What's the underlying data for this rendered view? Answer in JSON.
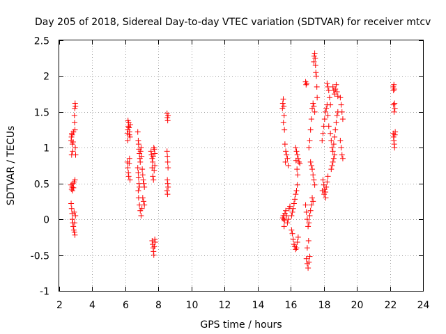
{
  "chart_data": {
    "type": "scatter",
    "title": "Day 205 of 2018, Sidereal Day-to-day VTEC variation (SDTVAR) for receiver mtcv",
    "xlabel": "GPS time / hours",
    "ylabel": "SDTVAR / TECUs",
    "xlim": [
      2,
      24
    ],
    "ylim": [
      -1,
      2.5
    ],
    "xticks": [
      2,
      4,
      6,
      8,
      10,
      12,
      14,
      16,
      18,
      20,
      22,
      24
    ],
    "yticks": [
      -1,
      -0.5,
      0,
      0.5,
      1,
      1.5,
      2,
      2.5
    ],
    "xtick_labels": [
      "2",
      "4",
      "6",
      "8",
      "10",
      "12",
      "14",
      "16",
      "18",
      "20",
      "22",
      "24"
    ],
    "ytick_labels": [
      "-1",
      "-0.5",
      "0",
      "0.5",
      "1",
      "1.5",
      "2",
      "2.5"
    ],
    "grid": true,
    "marker": "+",
    "series": [
      {
        "name": "SDTVAR",
        "color": "#ff0000",
        "points": [
          [
            2.72,
            1.1
          ],
          [
            2.74,
            1.15
          ],
          [
            2.76,
            1.2
          ],
          [
            2.78,
            1.18
          ],
          [
            2.8,
            1.05
          ],
          [
            2.82,
            0.95
          ],
          [
            2.75,
            0.9
          ],
          [
            2.86,
            1.22
          ],
          [
            2.84,
            1.08
          ],
          [
            2.92,
            1.45
          ],
          [
            2.94,
            1.55
          ],
          [
            2.96,
            1.62
          ],
          [
            2.98,
            1.58
          ],
          [
            2.93,
            1.35
          ],
          [
            2.95,
            1.25
          ],
          [
            2.97,
            1.0
          ],
          [
            2.99,
            0.9
          ],
          [
            2.72,
            0.48
          ],
          [
            2.75,
            0.42
          ],
          [
            2.78,
            0.45
          ],
          [
            2.8,
            0.4
          ],
          [
            2.83,
            0.5
          ],
          [
            2.86,
            0.44
          ],
          [
            2.9,
            0.52
          ],
          [
            2.95,
            0.55
          ],
          [
            2.72,
            0.22
          ],
          [
            2.75,
            0.15
          ],
          [
            2.78,
            0.08
          ],
          [
            2.8,
            0.0
          ],
          [
            2.82,
            -0.05
          ],
          [
            2.85,
            -0.1
          ],
          [
            2.88,
            -0.15
          ],
          [
            2.92,
            -0.18
          ],
          [
            2.95,
            -0.22
          ],
          [
            2.98,
            0.05
          ],
          [
            2.9,
            0.1
          ],
          [
            2.93,
            -0.05
          ],
          [
            6.12,
            1.2
          ],
          [
            6.15,
            1.25
          ],
          [
            6.18,
            1.3
          ],
          [
            6.2,
            1.35
          ],
          [
            6.22,
            1.28
          ],
          [
            6.25,
            1.22
          ],
          [
            6.28,
            1.15
          ],
          [
            6.14,
            1.1
          ],
          [
            6.3,
            1.32
          ],
          [
            6.16,
            1.38
          ],
          [
            6.24,
            1.18
          ],
          [
            6.12,
            0.8
          ],
          [
            6.15,
            0.72
          ],
          [
            6.18,
            0.65
          ],
          [
            6.2,
            0.6
          ],
          [
            6.23,
            0.78
          ],
          [
            6.25,
            0.85
          ],
          [
            6.28,
            0.55
          ],
          [
            6.75,
            1.22
          ],
          [
            6.78,
            1.1
          ],
          [
            6.8,
            1.05
          ],
          [
            6.82,
            0.98
          ],
          [
            6.85,
            0.92
          ],
          [
            6.88,
            0.85
          ],
          [
            6.9,
            0.8
          ],
          [
            6.92,
            0.95
          ],
          [
            6.95,
            1.0
          ],
          [
            6.98,
            0.88
          ],
          [
            6.75,
            0.72
          ],
          [
            6.78,
            0.65
          ],
          [
            6.8,
            0.58
          ],
          [
            6.82,
            0.5
          ],
          [
            6.85,
            0.45
          ],
          [
            6.78,
            0.4
          ],
          [
            6.8,
            0.3
          ],
          [
            6.85,
            0.2
          ],
          [
            6.9,
            0.12
          ],
          [
            6.95,
            0.05
          ],
          [
            7.0,
            0.15
          ],
          [
            7.02,
            0.7
          ],
          [
            7.05,
            0.62
          ],
          [
            7.08,
            0.55
          ],
          [
            7.12,
            0.5
          ],
          [
            7.15,
            0.45
          ],
          [
            7.05,
            0.3
          ],
          [
            7.1,
            0.25
          ],
          [
            7.15,
            0.2
          ],
          [
            7.55,
            0.95
          ],
          [
            7.58,
            0.9
          ],
          [
            7.62,
            0.85
          ],
          [
            7.65,
            0.8
          ],
          [
            7.68,
            0.88
          ],
          [
            7.72,
            1.0
          ],
          [
            7.75,
            0.98
          ],
          [
            7.78,
            0.92
          ],
          [
            7.62,
            0.72
          ],
          [
            7.66,
            0.6
          ],
          [
            7.7,
            0.55
          ],
          [
            7.74,
            0.68
          ],
          [
            7.78,
            0.75
          ],
          [
            7.62,
            -0.3
          ],
          [
            7.65,
            -0.35
          ],
          [
            7.68,
            -0.4
          ],
          [
            7.7,
            -0.45
          ],
          [
            7.72,
            -0.5
          ],
          [
            7.75,
            -0.38
          ],
          [
            7.78,
            -0.28
          ],
          [
            7.8,
            -0.32
          ],
          [
            8.52,
            1.48
          ],
          [
            8.54,
            1.42
          ],
          [
            8.56,
            1.38
          ],
          [
            8.58,
            1.45
          ],
          [
            8.52,
            0.95
          ],
          [
            8.54,
            0.88
          ],
          [
            8.56,
            0.8
          ],
          [
            8.58,
            0.72
          ],
          [
            8.54,
            0.55
          ],
          [
            8.56,
            0.5
          ],
          [
            8.58,
            0.45
          ],
          [
            8.52,
            0.4
          ],
          [
            8.55,
            0.35
          ],
          [
            15.5,
            1.55
          ],
          [
            15.52,
            1.62
          ],
          [
            15.55,
            1.68
          ],
          [
            15.58,
            1.58
          ],
          [
            15.6,
            1.45
          ],
          [
            15.56,
            1.35
          ],
          [
            15.62,
            1.25
          ],
          [
            15.65,
            1.05
          ],
          [
            15.7,
            0.95
          ],
          [
            15.75,
            0.9
          ],
          [
            15.8,
            0.85
          ],
          [
            15.85,
            0.75
          ],
          [
            15.68,
            0.8
          ],
          [
            15.52,
            0.02
          ],
          [
            15.55,
            0.05
          ],
          [
            15.58,
            0.0
          ],
          [
            15.62,
            -0.02
          ],
          [
            15.65,
            0.08
          ],
          [
            15.7,
            0.12
          ],
          [
            15.75,
            0.05
          ],
          [
            15.8,
            -0.05
          ],
          [
            15.85,
            0.0
          ],
          [
            15.9,
            0.15
          ],
          [
            15.95,
            0.18
          ],
          [
            15.6,
            -0.1
          ],
          [
            16.05,
            0.05
          ],
          [
            16.1,
            0.1
          ],
          [
            16.15,
            0.15
          ],
          [
            16.2,
            0.22
          ],
          [
            16.25,
            0.28
          ],
          [
            16.3,
            0.35
          ],
          [
            16.35,
            0.4
          ],
          [
            16.4,
            0.48
          ],
          [
            16.05,
            -0.15
          ],
          [
            16.1,
            -0.2
          ],
          [
            16.15,
            -0.28
          ],
          [
            16.2,
            -0.35
          ],
          [
            16.25,
            -0.38
          ],
          [
            16.3,
            -0.42
          ],
          [
            16.35,
            -0.4
          ],
          [
            16.4,
            -0.32
          ],
          [
            16.45,
            -0.25
          ],
          [
            16.3,
            1.0
          ],
          [
            16.35,
            0.95
          ],
          [
            16.4,
            0.9
          ],
          [
            16.45,
            0.85
          ],
          [
            16.5,
            0.8
          ],
          [
            16.55,
            0.78
          ],
          [
            16.32,
            0.82
          ],
          [
            16.38,
            0.7
          ],
          [
            16.42,
            0.62
          ],
          [
            16.9,
            1.92
          ],
          [
            16.93,
            1.88
          ],
          [
            16.96,
            1.9
          ],
          [
            16.9,
            0.2
          ],
          [
            16.95,
            0.1
          ],
          [
            17.0,
            0.0
          ],
          [
            17.05,
            -0.1
          ],
          [
            17.1,
            -0.05
          ],
          [
            17.15,
            0.05
          ],
          [
            17.2,
            0.12
          ],
          [
            17.25,
            0.2
          ],
          [
            17.3,
            0.3
          ],
          [
            17.35,
            0.25
          ],
          [
            16.95,
            -0.55
          ],
          [
            17.0,
            -0.62
          ],
          [
            17.05,
            -0.68
          ],
          [
            17.1,
            -0.6
          ],
          [
            17.15,
            -0.52
          ],
          [
            17.0,
            -0.4
          ],
          [
            17.08,
            -0.3
          ],
          [
            17.1,
            1.0
          ],
          [
            17.15,
            1.1
          ],
          [
            17.2,
            1.25
          ],
          [
            17.25,
            1.4
          ],
          [
            17.3,
            1.55
          ],
          [
            17.35,
            1.62
          ],
          [
            17.4,
            1.58
          ],
          [
            17.45,
            1.5
          ],
          [
            17.2,
            0.8
          ],
          [
            17.25,
            0.75
          ],
          [
            17.3,
            0.7
          ],
          [
            17.35,
            0.62
          ],
          [
            17.4,
            0.55
          ],
          [
            17.45,
            0.48
          ],
          [
            17.4,
            2.2
          ],
          [
            17.42,
            2.28
          ],
          [
            17.45,
            2.32
          ],
          [
            17.48,
            2.25
          ],
          [
            17.5,
            2.15
          ],
          [
            17.52,
            2.05
          ],
          [
            17.55,
            2.0
          ],
          [
            17.58,
            1.85
          ],
          [
            17.6,
            1.7
          ],
          [
            17.9,
            1.1
          ],
          [
            17.95,
            1.2
          ],
          [
            18.0,
            1.3
          ],
          [
            18.05,
            1.4
          ],
          [
            18.1,
            1.5
          ],
          [
            18.15,
            1.55
          ],
          [
            18.2,
            1.6
          ],
          [
            18.25,
            1.45
          ],
          [
            18.3,
            1.3
          ],
          [
            17.95,
            0.55
          ],
          [
            18.0,
            0.48
          ],
          [
            18.05,
            0.42
          ],
          [
            18.1,
            0.38
          ],
          [
            18.15,
            0.45
          ],
          [
            18.2,
            0.52
          ],
          [
            18.25,
            0.6
          ],
          [
            17.92,
            0.4
          ],
          [
            18.02,
            0.35
          ],
          [
            18.12,
            0.3
          ],
          [
            18.2,
            1.9
          ],
          [
            18.25,
            1.85
          ],
          [
            18.3,
            1.8
          ],
          [
            18.35,
            1.7
          ],
          [
            18.4,
            1.6
          ],
          [
            18.4,
            1.2
          ],
          [
            18.45,
            1.1
          ],
          [
            18.5,
            1.0
          ],
          [
            18.55,
            0.95
          ],
          [
            18.6,
            1.05
          ],
          [
            18.65,
            1.15
          ],
          [
            18.7,
            1.25
          ],
          [
            18.75,
            1.35
          ],
          [
            18.8,
            1.45
          ],
          [
            18.85,
            1.5
          ],
          [
            18.45,
            0.7
          ],
          [
            18.5,
            0.75
          ],
          [
            18.55,
            0.8
          ],
          [
            18.6,
            0.85
          ],
          [
            18.65,
            0.9
          ],
          [
            18.55,
            1.85
          ],
          [
            18.6,
            1.8
          ],
          [
            18.65,
            1.75
          ],
          [
            18.7,
            1.82
          ],
          [
            18.75,
            1.88
          ],
          [
            18.8,
            1.78
          ],
          [
            18.85,
            1.72
          ],
          [
            19.0,
            1.7
          ],
          [
            19.05,
            1.6
          ],
          [
            19.1,
            1.5
          ],
          [
            19.15,
            1.4
          ],
          [
            19.0,
            1.1
          ],
          [
            19.05,
            1.0
          ],
          [
            19.1,
            0.9
          ],
          [
            19.15,
            0.85
          ],
          [
            22.2,
            1.85
          ],
          [
            22.22,
            1.8
          ],
          [
            22.24,
            1.88
          ],
          [
            22.26,
            1.82
          ],
          [
            22.28,
            1.62
          ],
          [
            22.3,
            1.55
          ],
          [
            22.22,
            1.6
          ],
          [
            22.25,
            1.5
          ],
          [
            22.2,
            1.2
          ],
          [
            22.22,
            1.15
          ],
          [
            22.24,
            1.1
          ],
          [
            22.26,
            1.05
          ],
          [
            22.28,
            1.0
          ],
          [
            22.3,
            1.18
          ],
          [
            22.32,
            1.22
          ]
        ]
      }
    ]
  }
}
